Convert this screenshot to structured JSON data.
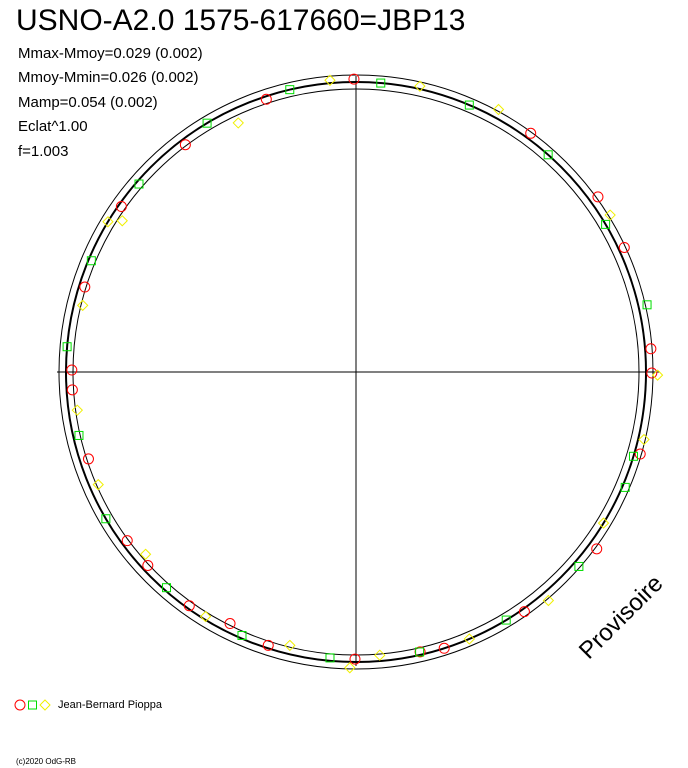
{
  "chart_data": {
    "type": "polar-scatter",
    "title": "USNO-A2.0 1575-617660=JBP13",
    "info": [
      "Mmax-Mmoy=0.029 (0.002)",
      "Mmoy-Mmin=0.026 (0.002)",
      "Mamp=0.054 (0.002)",
      "Eclat^1.00",
      "f=1.003"
    ],
    "watermark": "Provisoire",
    "observer": "Jean-Bernard Pioppa",
    "credit": "(c)2020 OdG-RB",
    "series": [
      {
        "color": "#ff0000",
        "marker": "circle",
        "x": [
          359.6,
          341.8,
          36.2,
          323.1,
          305.2,
          54.1,
          65.1,
          287.4,
          85.5,
          90.2,
          270.4,
          266.4,
          106.1,
          252,
          126.3,
          233.6,
          227.1,
          215.5,
          206.6,
          144.9,
          197.8,
          180.2,
          167.1,
          162.3
        ],
        "values": [
          1.01,
          0.99,
          1.02,
          0.98,
          0.99,
          1.03,
          1.02,
          0.98,
          1.02,
          1.02,
          0.98,
          0.98,
          1.02,
          0.97,
          1.03,
          0.98,
          0.98,
          0.99,
          0.97,
          1.01,
          0.99,
          0.99,
          0.99,
          1.0
        ]
      },
      {
        "color": "#00dd00",
        "marker": "square",
        "x": [
          346.8,
          4.9,
          23.0,
          41.5,
          329.1,
          310.9,
          59.4,
          292.8,
          77.0,
          275.0,
          257.1,
          106.9,
          113.2,
          239.6,
          131.1,
          221.3,
          203.4,
          185.2,
          167.2,
          148.8
        ],
        "values": [
          1.0,
          1.0,
          1.0,
          1.0,
          1.0,
          0.99,
          1.0,
          0.99,
          1.03,
          1.0,
          0.98,
          1.0,
          1.01,
          1.0,
          1.02,
          0.99,
          0.99,
          0.99,
          0.99,
          1.0
        ]
      },
      {
        "color": "#f0f000",
        "marker": "diamond",
        "x": [
          354.9,
          12.6,
          28.5,
          334.7,
          301.2,
          302.9,
          58.3,
          283.7,
          90.6,
          262.2,
          103.2,
          246.4,
          121.4,
          229.1,
          139.9,
          211.6,
          193.6,
          175.2,
          157.0,
          181.2
        ],
        "values": [
          1.01,
          1.01,
          1.03,
          0.95,
          1.0,
          0.96,
          1.03,
          0.97,
          1.04,
          0.97,
          1.02,
          0.97,
          1.0,
          0.96,
          1.03,
          0.99,
          0.97,
          0.98,
          1.0,
          1.02
        ]
      }
    ]
  }
}
